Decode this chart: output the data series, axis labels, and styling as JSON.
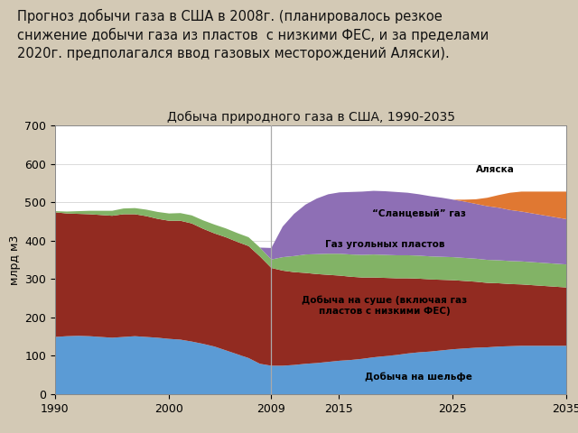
{
  "title": "Добыча природного газа в США, 1990-2035",
  "ylabel": "млрд м3",
  "background_color": "#d3c9b5",
  "chart_bg": "#ffffff",
  "header_text": "Прогноз добычи газа в США в 2008г. (планировалось резкое\nснижение добычи газа из пластов  с низкими ФЕС, и за пределами\n2020г. предполагался ввод газовых месторождений Аляски).",
  "years": [
    1990,
    1991,
    1992,
    1993,
    1994,
    1995,
    1996,
    1997,
    1998,
    1999,
    2000,
    2001,
    2002,
    2003,
    2004,
    2005,
    2006,
    2007,
    2008,
    2009,
    2010,
    2011,
    2012,
    2013,
    2014,
    2015,
    2016,
    2017,
    2018,
    2019,
    2020,
    2021,
    2022,
    2023,
    2024,
    2025,
    2026,
    2027,
    2028,
    2029,
    2030,
    2031,
    2032,
    2033,
    2034,
    2035
  ],
  "shelf": [
    150,
    152,
    153,
    152,
    150,
    148,
    150,
    152,
    150,
    148,
    145,
    143,
    138,
    132,
    125,
    115,
    105,
    95,
    80,
    75,
    75,
    77,
    80,
    82,
    85,
    88,
    90,
    93,
    97,
    100,
    103,
    107,
    110,
    112,
    115,
    118,
    120,
    122,
    123,
    125,
    126,
    127,
    127,
    127,
    127,
    127
  ],
  "onshore": [
    325,
    320,
    318,
    318,
    318,
    318,
    320,
    318,
    315,
    310,
    308,
    310,
    308,
    300,
    295,
    295,
    293,
    292,
    280,
    255,
    248,
    242,
    237,
    232,
    227,
    222,
    217,
    212,
    208,
    204,
    200,
    196,
    192,
    188,
    184,
    180,
    176,
    172,
    168,
    165,
    162,
    160,
    158,
    156,
    154,
    152
  ],
  "coalbed": [
    3,
    5,
    7,
    9,
    11,
    13,
    15,
    16,
    17,
    18,
    19,
    20,
    21,
    22,
    23,
    23,
    23,
    23,
    23,
    22,
    35,
    42,
    48,
    52,
    55,
    57,
    58,
    59,
    60,
    60,
    60,
    60,
    60,
    60,
    60,
    60,
    60,
    60,
    60,
    60,
    60,
    60,
    60,
    60,
    60,
    60
  ],
  "shale": [
    0,
    0,
    0,
    0,
    0,
    0,
    0,
    0,
    0,
    0,
    0,
    0,
    0,
    0,
    0,
    0,
    0,
    0,
    0,
    30,
    80,
    110,
    130,
    145,
    155,
    160,
    163,
    165,
    166,
    166,
    165,
    163,
    160,
    157,
    154,
    150,
    147,
    143,
    140,
    137,
    133,
    130,
    127,
    124,
    121,
    118
  ],
  "alaska": [
    0,
    0,
    0,
    0,
    0,
    0,
    0,
    0,
    0,
    0,
    0,
    0,
    0,
    0,
    0,
    0,
    0,
    0,
    0,
    0,
    0,
    0,
    0,
    0,
    0,
    0,
    0,
    0,
    0,
    0,
    0,
    0,
    0,
    0,
    0,
    0,
    5,
    12,
    22,
    33,
    45,
    52,
    57,
    62,
    67,
    72
  ],
  "colors": {
    "shelf": "#5b9bd5",
    "onshore": "#922b21",
    "coalbed": "#82b366",
    "shale": "#8e6fb5",
    "alaska": "#e07832"
  },
  "labels": {
    "shelf": "Добыча на шельфе",
    "onshore": "Добыча на суше (включая газ\nпластов с низкими ФЕС)",
    "coalbed": "Газ угольных пластов",
    "shale": "“Сланцевый” газ",
    "alaska": "Аляска"
  },
  "ylim": [
    0,
    700
  ],
  "xlim": [
    1990,
    2035
  ],
  "vline_x": 2009,
  "xticks": [
    1990,
    2000,
    2009,
    2015,
    2025,
    2035
  ],
  "yticks": [
    0,
    100,
    200,
    300,
    400,
    500,
    600,
    700
  ]
}
